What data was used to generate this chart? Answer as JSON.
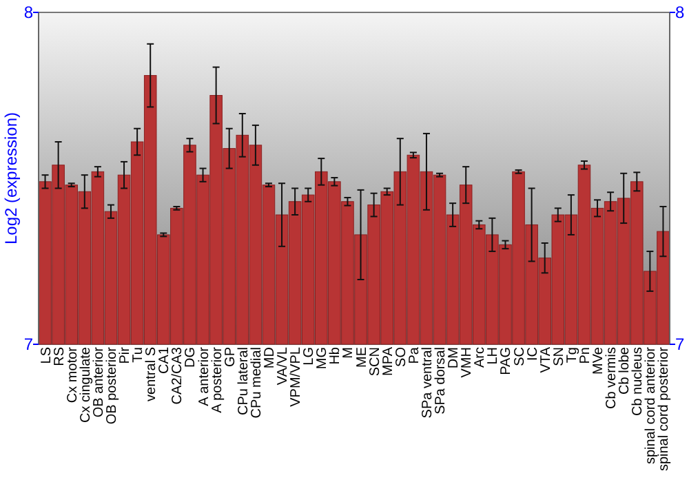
{
  "chart_data": {
    "type": "bar",
    "ylabel": "Log2 (expression)",
    "categories": [
      "LS",
      "RS",
      "Cx motor",
      "Cx cingulate",
      "OB anterior",
      "OB posterior",
      "Pir",
      "Tu",
      "ventral S",
      "CA1",
      "CA2/CA3",
      "DG",
      "A anterior",
      "A posterior",
      "GP",
      "CPu lateral",
      "CPu medial",
      "MD",
      "VA/VL",
      "VPM/VPL",
      "LG",
      "MG",
      "Hb",
      "M",
      "ME",
      "SCN",
      "MPA",
      "SO",
      "Pa",
      "SPa ventral",
      "SPa dorsal",
      "DM",
      "VMH",
      "Arc",
      "LH",
      "PAG",
      "SC",
      "IC",
      "VTA",
      "SN",
      "Tg",
      "Pn",
      "MVe",
      "Cb vermis",
      "Cb lobe",
      "Cb nucleus",
      "spinal cord anterior",
      "spinal cord posterior"
    ],
    "values": [
      7.49,
      7.54,
      7.48,
      7.46,
      7.52,
      7.4,
      7.51,
      7.61,
      7.81,
      7.33,
      7.41,
      7.6,
      7.51,
      7.75,
      7.59,
      7.63,
      7.6,
      7.48,
      7.39,
      7.43,
      7.45,
      7.52,
      7.49,
      7.43,
      7.33,
      7.42,
      7.46,
      7.52,
      7.57,
      7.52,
      7.51,
      7.39,
      7.48,
      7.36,
      7.33,
      7.3,
      7.52,
      7.36,
      7.26,
      7.39,
      7.39,
      7.54,
      7.41,
      7.43,
      7.44,
      7.49,
      7.22,
      7.34
    ],
    "errors": [
      0.02,
      0.07,
      0.005,
      0.05,
      0.015,
      0.02,
      0.04,
      0.04,
      0.095,
      0.005,
      0.005,
      0.02,
      0.02,
      0.085,
      0.06,
      0.065,
      0.06,
      0.005,
      0.095,
      0.04,
      0.02,
      0.04,
      0.012,
      0.012,
      0.135,
      0.035,
      0.01,
      0.1,
      0.008,
      0.115,
      0.005,
      0.035,
      0.055,
      0.012,
      0.05,
      0.012,
      0.005,
      0.11,
      0.045,
      0.02,
      0.06,
      0.012,
      0.025,
      0.028,
      0.075,
      0.028,
      0.06,
      0.075
    ],
    "color": "#b83434",
    "ylim": [
      7,
      8
    ],
    "yticks": [
      7,
      8
    ],
    "y2lim": [
      7,
      8
    ],
    "y2ticks": [
      7,
      8
    ],
    "grid": false
  }
}
